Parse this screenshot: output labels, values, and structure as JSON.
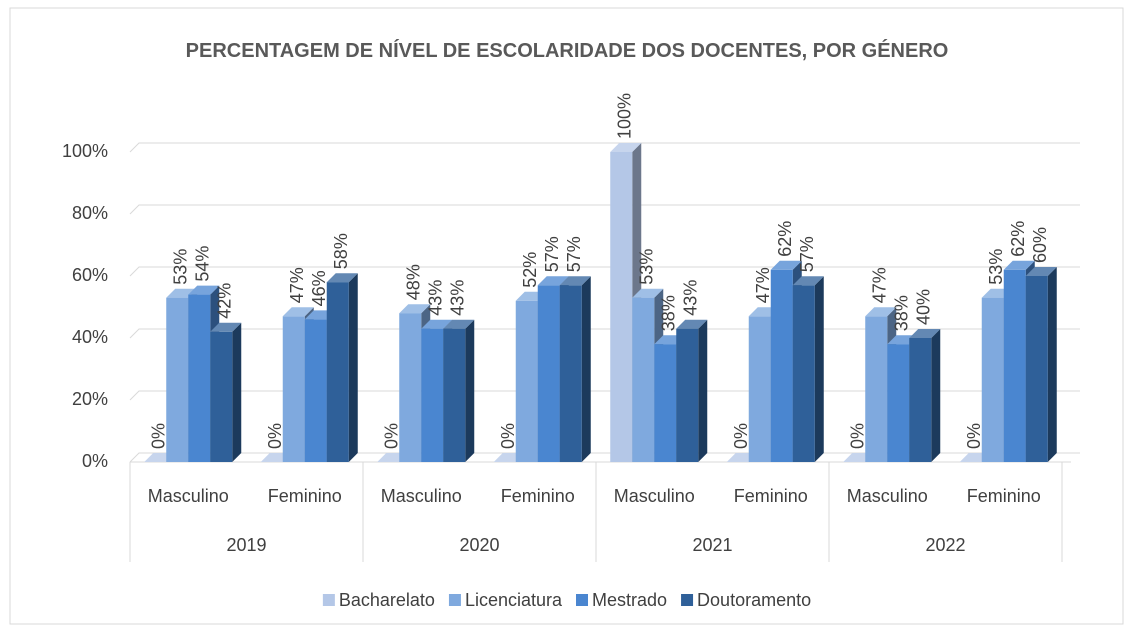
{
  "chart_data": {
    "type": "bar3d",
    "title": "PERCENTAGEM DE NÍVEL DE ESCOLARIDADE DOS DOCENTES, POR GÉNERO",
    "categories": [
      "Masculino",
      "Feminino",
      "Masculino",
      "Feminino",
      "Masculino",
      "Feminino",
      "Masculino",
      "Feminino"
    ],
    "category_groups": [
      "2019",
      "2020",
      "2021",
      "2022"
    ],
    "series": [
      {
        "name": "Bacharelato",
        "color": "#b4c7e7",
        "values": [
          0,
          0,
          0,
          0,
          100,
          0,
          0,
          0
        ],
        "value_labels": [
          "0%",
          "0%",
          "0%",
          "0%",
          "100%",
          "0%",
          "0%",
          "0%"
        ]
      },
      {
        "name": "Licenciatura",
        "color": "#7fa9de",
        "values": [
          53,
          47,
          48,
          52,
          53,
          47,
          47,
          53
        ],
        "value_labels": [
          "53%",
          "47%",
          "48%",
          "52%",
          "53%",
          "47%",
          "47%",
          "53%"
        ]
      },
      {
        "name": "Mestrado",
        "color": "#4a86d0",
        "values": [
          54,
          46,
          43,
          57,
          38,
          62,
          38,
          62
        ],
        "value_labels": [
          "54%",
          "46%",
          "43%",
          "57%",
          "38%",
          "62%",
          "38%",
          "62%"
        ]
      },
      {
        "name": "Doutoramento",
        "color": "#2f6099",
        "values": [
          42,
          58,
          43,
          57,
          43,
          57,
          40,
          60
        ],
        "value_labels": [
          "42%",
          "58%",
          "43%",
          "57%",
          "43%",
          "57%",
          "40%",
          "60%"
        ]
      }
    ],
    "ylim": [
      0,
      100
    ],
    "yticks": [
      {
        "value": 0,
        "label": "0%"
      },
      {
        "value": 20,
        "label": "20%"
      },
      {
        "value": 40,
        "label": "40%"
      },
      {
        "value": 60,
        "label": "60%"
      },
      {
        "value": 80,
        "label": "80%"
      },
      {
        "value": 100,
        "label": "100%"
      }
    ],
    "grid": true,
    "legend": "bottom"
  }
}
